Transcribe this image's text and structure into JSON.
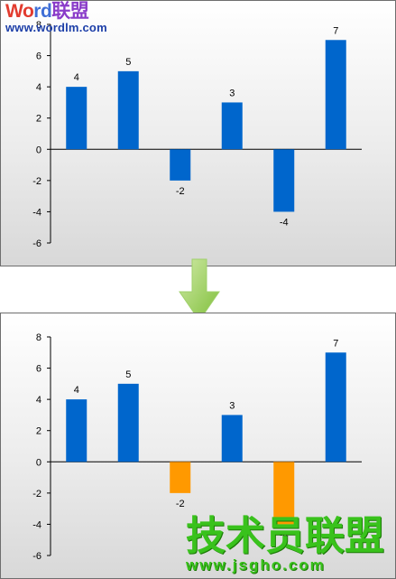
{
  "colors": {
    "positive": "#0066cc",
    "negative_top": "#0066cc",
    "negative_bottom": "#ff9900",
    "arrow": "#8cc63f"
  },
  "watermarks": {
    "top_brand_a": "Wo",
    "top_brand_b": "rd",
    "top_brand_c": "联盟",
    "top_url": "www.wordlm.com",
    "bottom_cn": "技术员联盟",
    "bottom_url": "www.jsgho.com"
  },
  "arrow_icon": "down-arrow-icon",
  "chart_data": [
    {
      "type": "bar",
      "categories": [
        "",
        "",
        "",
        "",
        "",
        ""
      ],
      "values": [
        4,
        5,
        -2,
        3,
        -4,
        7
      ],
      "data_labels": [
        "4",
        "5",
        "-2",
        "3",
        "-4",
        "7"
      ],
      "ylim": [
        -6,
        8
      ],
      "yticks": [
        "8",
        "6",
        "4",
        "2",
        "0",
        "-2",
        "-4",
        "-6"
      ],
      "negative_color": "#0066cc",
      "grid": false,
      "legend": "none"
    },
    {
      "type": "bar",
      "categories": [
        "",
        "",
        "",
        "",
        "",
        ""
      ],
      "values": [
        4,
        5,
        -2,
        3,
        -4,
        7
      ],
      "data_labels": [
        "4",
        "5",
        "-2",
        "3",
        "-4",
        "7"
      ],
      "ylim": [
        -6,
        8
      ],
      "yticks": [
        "8",
        "6",
        "4",
        "2",
        "0",
        "-2",
        "-4",
        "-6"
      ],
      "negative_color": "#ff9900",
      "grid": false,
      "legend": "none"
    }
  ]
}
